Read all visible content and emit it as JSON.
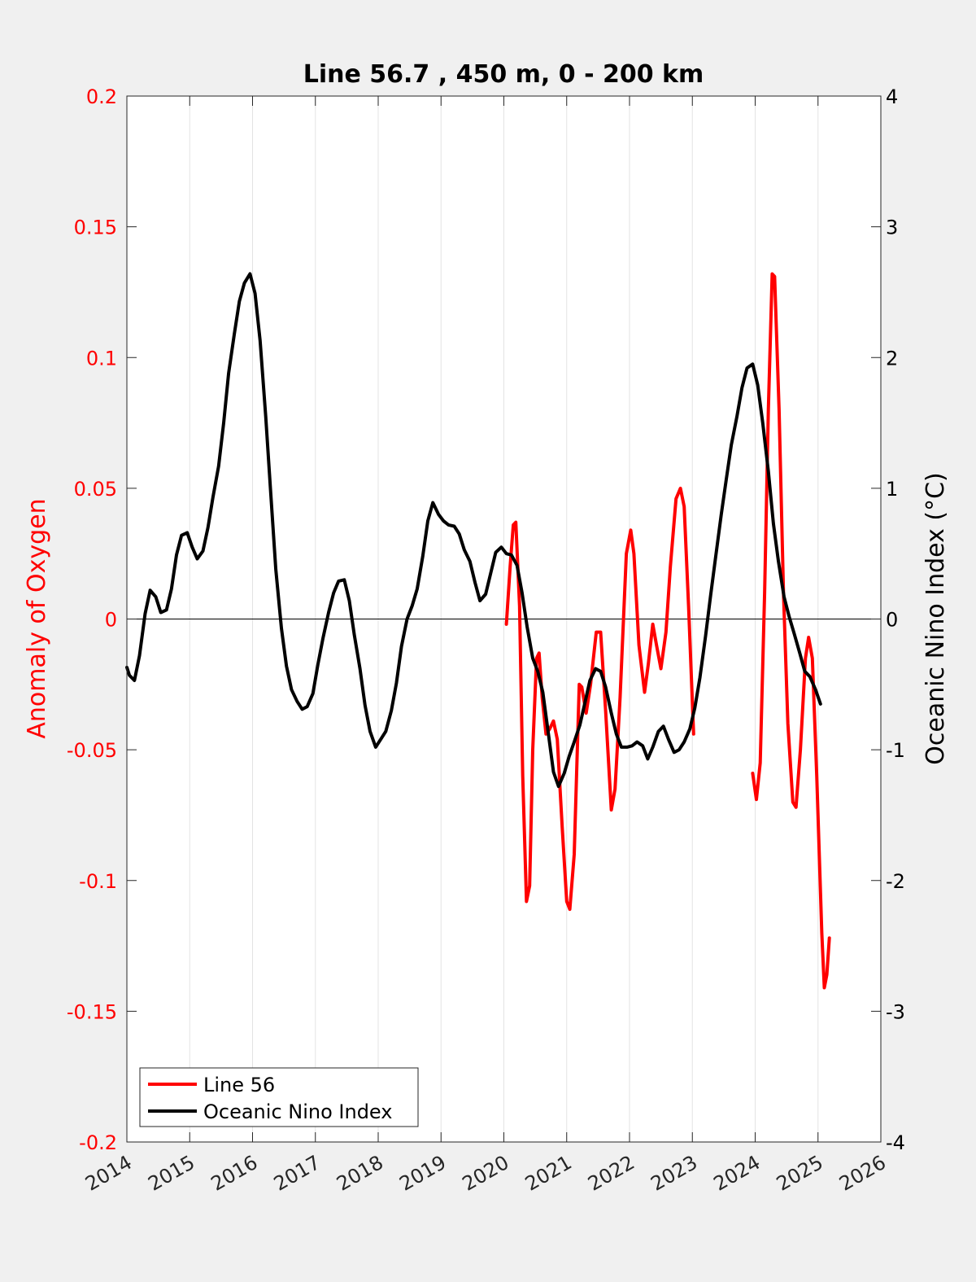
{
  "chart_data": {
    "type": "line",
    "title": "Line 56.7 , 450 m, 0 - 200 km",
    "xlabel": "",
    "ylabel": "Anomaly of Oxygen",
    "y2label": "Oceanic Nino Index (°C)",
    "xlim": [
      2014,
      2026
    ],
    "ylim": [
      -0.2,
      0.2
    ],
    "y2lim": [
      -4,
      4
    ],
    "xticks": [
      "2014",
      "2015",
      "2016",
      "2017",
      "2018",
      "2019",
      "2020",
      "2021",
      "2022",
      "2023",
      "2024",
      "2025",
      "2026"
    ],
    "yticks_left": [
      "-0.2",
      "-0.15",
      "-0.1",
      "-0.05",
      "0",
      "0.05",
      "0.1",
      "0.15",
      "0.2"
    ],
    "yticks_right": [
      "-4",
      "-3",
      "-2",
      "-1",
      "0",
      "1",
      "2",
      "3",
      "4"
    ],
    "grid": "vertical",
    "legend_position": "bottom-left",
    "colors": {
      "line56": "#ff0000",
      "oni": "#000000",
      "left_axis": "#ff0000"
    },
    "series": [
      {
        "name": "Line 56",
        "axis": "left",
        "color": "#ff0000",
        "segments": [
          [
            [
              2020.04,
              -0.002
            ],
            [
              2020.1,
              0.02
            ],
            [
              2020.15,
              0.036
            ],
            [
              2020.19,
              0.037
            ],
            [
              2020.25,
              0.005
            ],
            [
              2020.3,
              -0.06
            ],
            [
              2020.36,
              -0.108
            ],
            [
              2020.41,
              -0.102
            ],
            [
              2020.46,
              -0.05
            ],
            [
              2020.52,
              -0.015
            ],
            [
              2020.56,
              -0.013
            ],
            [
              2020.61,
              -0.03
            ],
            [
              2020.67,
              -0.044
            ],
            [
              2020.73,
              -0.042
            ],
            [
              2020.79,
              -0.039
            ],
            [
              2020.85,
              -0.046
            ],
            [
              2020.93,
              -0.08
            ],
            [
              2021.0,
              -0.108
            ],
            [
              2021.05,
              -0.111
            ],
            [
              2021.12,
              -0.09
            ],
            [
              2021.2,
              -0.025
            ],
            [
              2021.24,
              -0.026
            ],
            [
              2021.31,
              -0.036
            ],
            [
              2021.38,
              -0.025
            ],
            [
              2021.47,
              -0.005
            ],
            [
              2021.54,
              -0.005
            ],
            [
              2021.62,
              -0.035
            ],
            [
              2021.71,
              -0.073
            ],
            [
              2021.77,
              -0.065
            ],
            [
              2021.85,
              -0.03
            ],
            [
              2021.95,
              0.025
            ],
            [
              2022.02,
              0.034
            ],
            [
              2022.07,
              0.025
            ],
            [
              2022.15,
              -0.01
            ],
            [
              2022.24,
              -0.028
            ],
            [
              2022.3,
              -0.017
            ],
            [
              2022.37,
              -0.002
            ],
            [
              2022.43,
              -0.01
            ],
            [
              2022.5,
              -0.019
            ],
            [
              2022.58,
              -0.005
            ],
            [
              2022.65,
              0.02
            ],
            [
              2022.74,
              0.046
            ],
            [
              2022.81,
              0.05
            ],
            [
              2022.87,
              0.043
            ],
            [
              2022.94,
              0.005
            ],
            [
              2023.02,
              -0.044
            ]
          ],
          [
            [
              2023.96,
              -0.059
            ],
            [
              2024.02,
              -0.069
            ],
            [
              2024.08,
              -0.055
            ],
            [
              2024.15,
              0.01
            ],
            [
              2024.21,
              0.08
            ],
            [
              2024.27,
              0.132
            ],
            [
              2024.31,
              0.131
            ],
            [
              2024.38,
              0.08
            ],
            [
              2024.45,
              0.01
            ],
            [
              2024.52,
              -0.04
            ],
            [
              2024.6,
              -0.07
            ],
            [
              2024.65,
              -0.072
            ],
            [
              2024.72,
              -0.05
            ],
            [
              2024.8,
              -0.015
            ],
            [
              2024.85,
              -0.007
            ],
            [
              2024.91,
              -0.015
            ],
            [
              2024.98,
              -0.06
            ],
            [
              2025.06,
              -0.12
            ],
            [
              2025.1,
              -0.141
            ],
            [
              2025.14,
              -0.136
            ],
            [
              2025.18,
              -0.122
            ]
          ]
        ]
      },
      {
        "name": "Oceanic Nino Index",
        "axis": "right",
        "color": "#000000",
        "points": [
          [
            2014.0,
            -0.37
          ],
          [
            2014.04,
            -0.43
          ],
          [
            2014.12,
            -0.47
          ],
          [
            2014.2,
            -0.28
          ],
          [
            2014.29,
            0.04
          ],
          [
            2014.37,
            0.22
          ],
          [
            2014.46,
            0.17
          ],
          [
            2014.54,
            0.05
          ],
          [
            2014.63,
            0.07
          ],
          [
            2014.71,
            0.23
          ],
          [
            2014.79,
            0.49
          ],
          [
            2014.87,
            0.64
          ],
          [
            2014.96,
            0.66
          ],
          [
            2015.04,
            0.55
          ],
          [
            2015.12,
            0.46
          ],
          [
            2015.21,
            0.52
          ],
          [
            2015.29,
            0.7
          ],
          [
            2015.37,
            0.93
          ],
          [
            2015.46,
            1.17
          ],
          [
            2015.54,
            1.5
          ],
          [
            2015.62,
            1.88
          ],
          [
            2015.71,
            2.18
          ],
          [
            2015.79,
            2.43
          ],
          [
            2015.87,
            2.57
          ],
          [
            2015.96,
            2.64
          ],
          [
            2016.04,
            2.49
          ],
          [
            2016.12,
            2.13
          ],
          [
            2016.21,
            1.55
          ],
          [
            2016.29,
            0.96
          ],
          [
            2016.37,
            0.38
          ],
          [
            2016.46,
            -0.07
          ],
          [
            2016.54,
            -0.36
          ],
          [
            2016.62,
            -0.54
          ],
          [
            2016.71,
            -0.63
          ],
          [
            2016.79,
            -0.69
          ],
          [
            2016.87,
            -0.67
          ],
          [
            2016.96,
            -0.57
          ],
          [
            2017.04,
            -0.35
          ],
          [
            2017.12,
            -0.15
          ],
          [
            2017.21,
            0.05
          ],
          [
            2017.29,
            0.2
          ],
          [
            2017.37,
            0.29
          ],
          [
            2017.46,
            0.3
          ],
          [
            2017.54,
            0.14
          ],
          [
            2017.62,
            -0.12
          ],
          [
            2017.71,
            -0.38
          ],
          [
            2017.79,
            -0.66
          ],
          [
            2017.87,
            -0.86
          ],
          [
            2017.96,
            -0.98
          ],
          [
            2018.04,
            -0.92
          ],
          [
            2018.12,
            -0.86
          ],
          [
            2018.21,
            -0.7
          ],
          [
            2018.29,
            -0.49
          ],
          [
            2018.37,
            -0.21
          ],
          [
            2018.46,
            0.0
          ],
          [
            2018.54,
            0.1
          ],
          [
            2018.62,
            0.23
          ],
          [
            2018.71,
            0.48
          ],
          [
            2018.79,
            0.75
          ],
          [
            2018.87,
            0.89
          ],
          [
            2018.96,
            0.8
          ],
          [
            2019.04,
            0.75
          ],
          [
            2019.12,
            0.72
          ],
          [
            2019.21,
            0.71
          ],
          [
            2019.29,
            0.65
          ],
          [
            2019.37,
            0.53
          ],
          [
            2019.46,
            0.44
          ],
          [
            2019.54,
            0.28
          ],
          [
            2019.62,
            0.14
          ],
          [
            2019.71,
            0.19
          ],
          [
            2019.79,
            0.35
          ],
          [
            2019.87,
            0.51
          ],
          [
            2019.96,
            0.55
          ],
          [
            2020.04,
            0.5
          ],
          [
            2020.12,
            0.49
          ],
          [
            2020.21,
            0.41
          ],
          [
            2020.29,
            0.2
          ],
          [
            2020.37,
            -0.06
          ],
          [
            2020.46,
            -0.3
          ],
          [
            2020.54,
            -0.4
          ],
          [
            2020.62,
            -0.56
          ],
          [
            2020.71,
            -0.88
          ],
          [
            2020.79,
            -1.17
          ],
          [
            2020.87,
            -1.28
          ],
          [
            2020.96,
            -1.18
          ],
          [
            2021.04,
            -1.05
          ],
          [
            2021.12,
            -0.94
          ],
          [
            2021.21,
            -0.81
          ],
          [
            2021.29,
            -0.64
          ],
          [
            2021.37,
            -0.47
          ],
          [
            2021.46,
            -0.38
          ],
          [
            2021.54,
            -0.4
          ],
          [
            2021.62,
            -0.52
          ],
          [
            2021.71,
            -0.72
          ],
          [
            2021.79,
            -0.88
          ],
          [
            2021.87,
            -0.98
          ],
          [
            2021.96,
            -0.98
          ],
          [
            2022.04,
            -0.97
          ],
          [
            2022.12,
            -0.94
          ],
          [
            2022.21,
            -0.97
          ],
          [
            2022.29,
            -1.07
          ],
          [
            2022.37,
            -0.98
          ],
          [
            2022.46,
            -0.86
          ],
          [
            2022.54,
            -0.82
          ],
          [
            2022.62,
            -0.92
          ],
          [
            2022.71,
            -1.02
          ],
          [
            2022.79,
            -1.0
          ],
          [
            2022.87,
            -0.94
          ],
          [
            2022.96,
            -0.84
          ],
          [
            2023.04,
            -0.68
          ],
          [
            2023.12,
            -0.45
          ],
          [
            2023.21,
            -0.13
          ],
          [
            2023.29,
            0.18
          ],
          [
            2023.37,
            0.47
          ],
          [
            2023.46,
            0.8
          ],
          [
            2023.54,
            1.07
          ],
          [
            2023.62,
            1.33
          ],
          [
            2023.71,
            1.55
          ],
          [
            2023.79,
            1.77
          ],
          [
            2023.87,
            1.92
          ],
          [
            2023.96,
            1.95
          ],
          [
            2024.04,
            1.79
          ],
          [
            2024.12,
            1.5
          ],
          [
            2024.21,
            1.13
          ],
          [
            2024.29,
            0.73
          ],
          [
            2024.37,
            0.44
          ],
          [
            2024.46,
            0.17
          ],
          [
            2024.54,
            0.02
          ],
          [
            2024.62,
            -0.11
          ],
          [
            2024.71,
            -0.26
          ],
          [
            2024.79,
            -0.4
          ],
          [
            2024.87,
            -0.44
          ],
          [
            2024.96,
            -0.54
          ],
          [
            2025.04,
            -0.65
          ]
        ]
      }
    ]
  }
}
